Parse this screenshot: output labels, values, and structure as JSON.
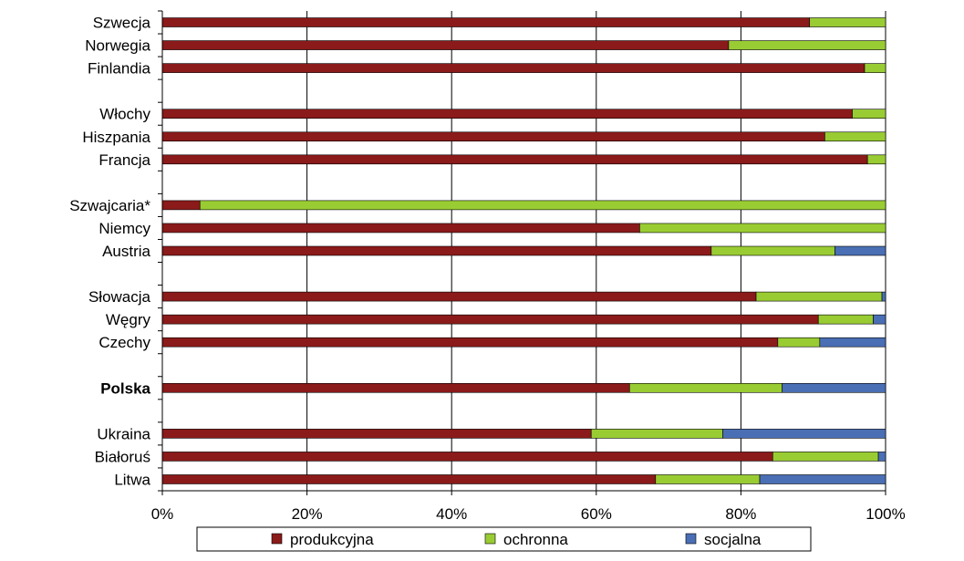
{
  "chart_data": {
    "type": "bar",
    "orientation": "horizontal",
    "stacked": "percent",
    "categories": [
      "Szwecja",
      "Norwegia",
      "Finlandia",
      "",
      "Włochy",
      "Hiszpania",
      "Francja",
      "",
      "Szwajcaria*",
      "Niemcy",
      "Austria",
      "",
      "Słowacja",
      "Węgry",
      "Czechy",
      "",
      "Polska",
      "",
      "Ukraina",
      "Białoruś",
      "Litwa"
    ],
    "bold_categories": [
      "Polska"
    ],
    "series": [
      {
        "name": "produkcyjna",
        "color": "#8b1a1a",
        "values": [
          89.5,
          78.3,
          97.1,
          null,
          95.4,
          91.6,
          97.5,
          null,
          5.2,
          66.0,
          75.9,
          null,
          82.1,
          90.7,
          85.1,
          null,
          64.6,
          null,
          59.3,
          84.4,
          68.2
        ]
      },
      {
        "name": "ochronna",
        "color": "#99cc33",
        "values": [
          10.5,
          21.7,
          2.9,
          null,
          4.6,
          8.4,
          2.5,
          null,
          94.8,
          34.0,
          17.1,
          null,
          17.4,
          7.6,
          5.8,
          null,
          21.1,
          null,
          18.2,
          14.6,
          14.4
        ]
      },
      {
        "name": "socjalna",
        "color": "#4a6fb5",
        "values": [
          0,
          0,
          0,
          null,
          0,
          0,
          0,
          null,
          0,
          0,
          7.0,
          null,
          0.5,
          1.7,
          9.1,
          null,
          14.3,
          null,
          22.5,
          1.0,
          17.4
        ]
      }
    ],
    "xlim": [
      0,
      100
    ],
    "xticks": [
      "0%",
      "20%",
      "40%",
      "60%",
      "80%",
      "100%"
    ],
    "grid": "vertical",
    "legend": "bottom"
  }
}
